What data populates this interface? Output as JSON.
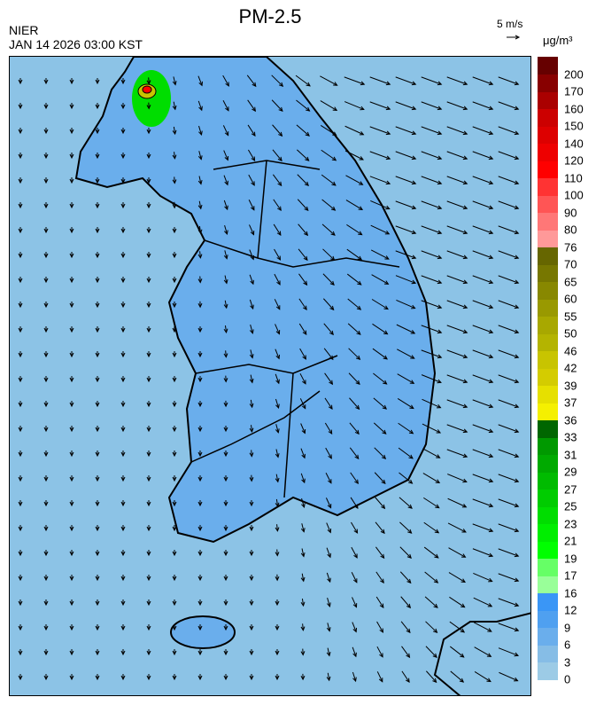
{
  "header": {
    "title": "PM-2.5",
    "organization": "NIER",
    "timestamp": "JAN 14 2026 03:00 KST"
  },
  "wind_reference": {
    "label": "5 m/s"
  },
  "colorbar": {
    "unit": "μg/m³",
    "labels": [
      "0",
      "3",
      "6",
      "9",
      "12",
      "16",
      "17",
      "19",
      "21",
      "23",
      "25",
      "27",
      "29",
      "31",
      "33",
      "36",
      "37",
      "39",
      "42",
      "46",
      "50",
      "55",
      "60",
      "65",
      "70",
      "76",
      "80",
      "90",
      "100",
      "110",
      "120",
      "140",
      "150",
      "160",
      "170",
      "200"
    ],
    "colors": [
      "#9ccbe6",
      "#86bde6",
      "#6aaeec",
      "#4fa0f0",
      "#3a96f6",
      "#99ff99",
      "#66ff66",
      "#00ff00",
      "#00ee00",
      "#00dd00",
      "#00cc00",
      "#00bb00",
      "#00aa00",
      "#009900",
      "#006600",
      "#f5f000",
      "#e6e000",
      "#d4cc00",
      "#c8c400",
      "#b4b400",
      "#a8a800",
      "#999900",
      "#888800",
      "#777700",
      "#666600",
      "#ff9999",
      "#ff7777",
      "#ff5555",
      "#ff3333",
      "#ff0000",
      "#ee0000",
      "#dd0000",
      "#cc0000",
      "#aa0000",
      "#880000",
      "#660000"
    ]
  },
  "map": {
    "background_color": "#8cc3e6",
    "land_color": "#6aaeec",
    "hotspot_color": "#00dd00",
    "peak_color": "#ff0000"
  }
}
